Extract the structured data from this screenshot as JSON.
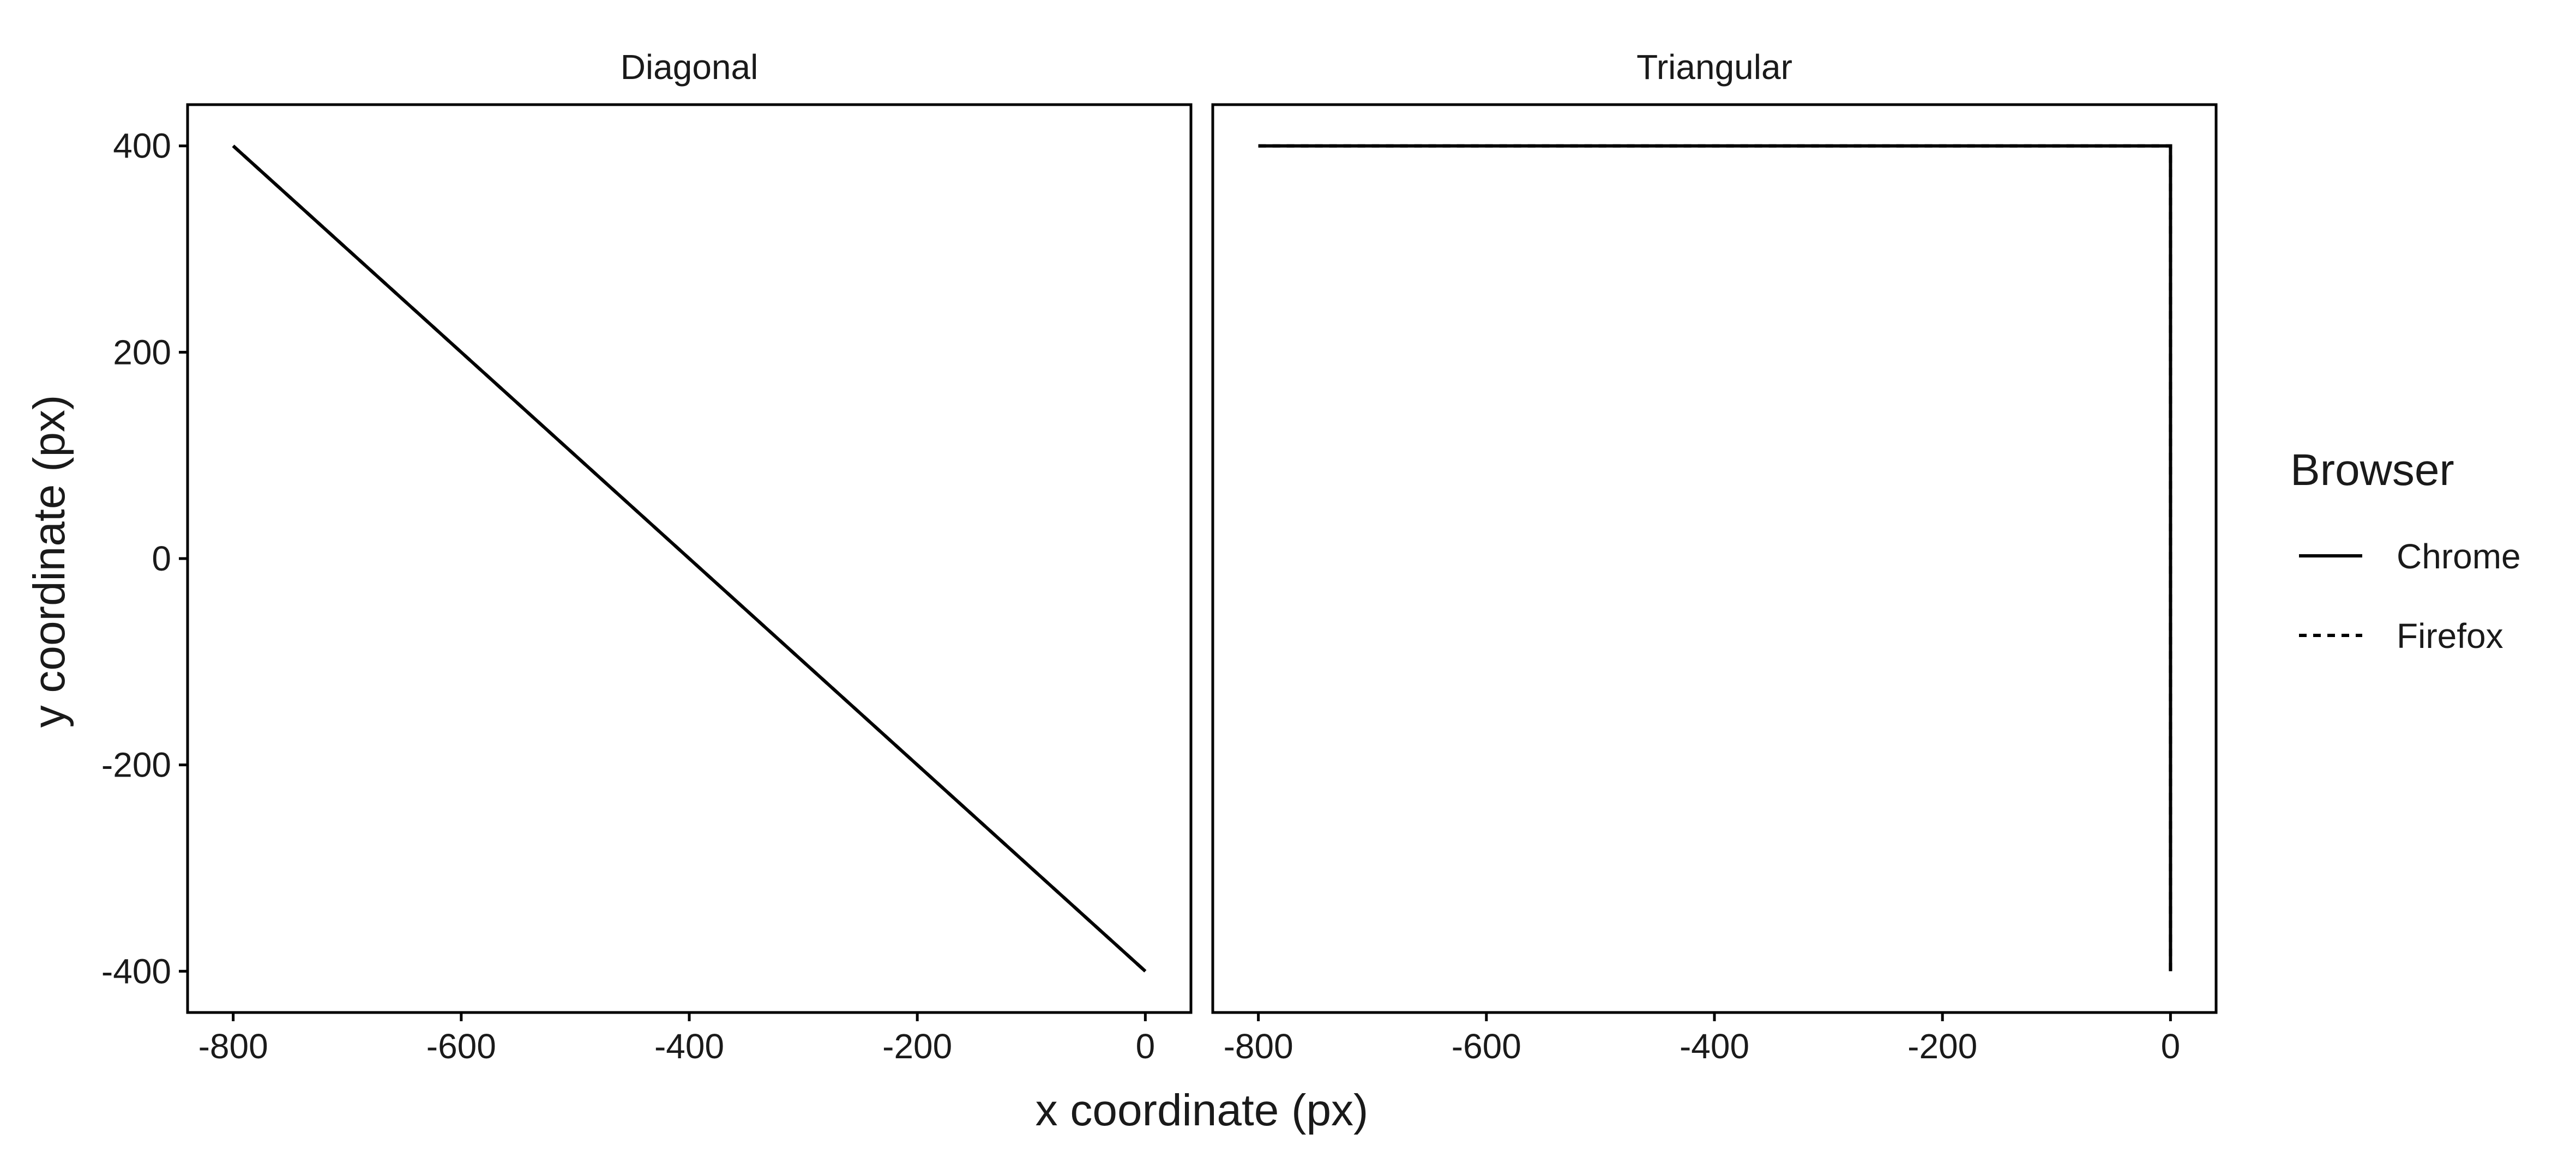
{
  "chart_data": {
    "type": "line",
    "xlabel": "x coordinate (px)",
    "ylabel": "y coordinate (px)",
    "xlim": [
      -840,
      40
    ],
    "ylim": [
      -440,
      440
    ],
    "x_ticks": [
      -800,
      -600,
      -400,
      -200,
      0
    ],
    "x_tick_labels": [
      "-800",
      "-600",
      "-400",
      "-200",
      "0"
    ],
    "y_ticks": [
      -400,
      -200,
      0,
      200,
      400
    ],
    "y_tick_labels": [
      "-400",
      "-200",
      "0",
      "200",
      "400"
    ],
    "grid": false,
    "legend": {
      "title": "Browser",
      "placement": "right",
      "entries": [
        {
          "label": "Chrome",
          "linestyle": "solid"
        },
        {
          "label": "Firefox",
          "linestyle": "dashed"
        }
      ]
    },
    "facets": [
      {
        "title": "Diagonal",
        "series": [
          {
            "name": "Chrome",
            "linestyle": "solid",
            "points": [
              [
                -800,
                400
              ],
              [
                0,
                -400
              ]
            ]
          },
          {
            "name": "Firefox",
            "linestyle": "dashed",
            "points": [
              [
                -800,
                400
              ],
              [
                0,
                -400
              ]
            ]
          }
        ]
      },
      {
        "title": "Triangular",
        "series": [
          {
            "name": "Chrome",
            "linestyle": "solid",
            "points": [
              [
                -800,
                400
              ],
              [
                0,
                400
              ],
              [
                0,
                -400
              ]
            ]
          },
          {
            "name": "Firefox",
            "linestyle": "dashed",
            "points": [
              [
                -800,
                400
              ],
              [
                0,
                400
              ],
              [
                0,
                -400
              ]
            ]
          }
        ]
      }
    ],
    "colors": {
      "line": "#000000",
      "panel_border": "#000000",
      "text": "#1a1a1a"
    }
  }
}
